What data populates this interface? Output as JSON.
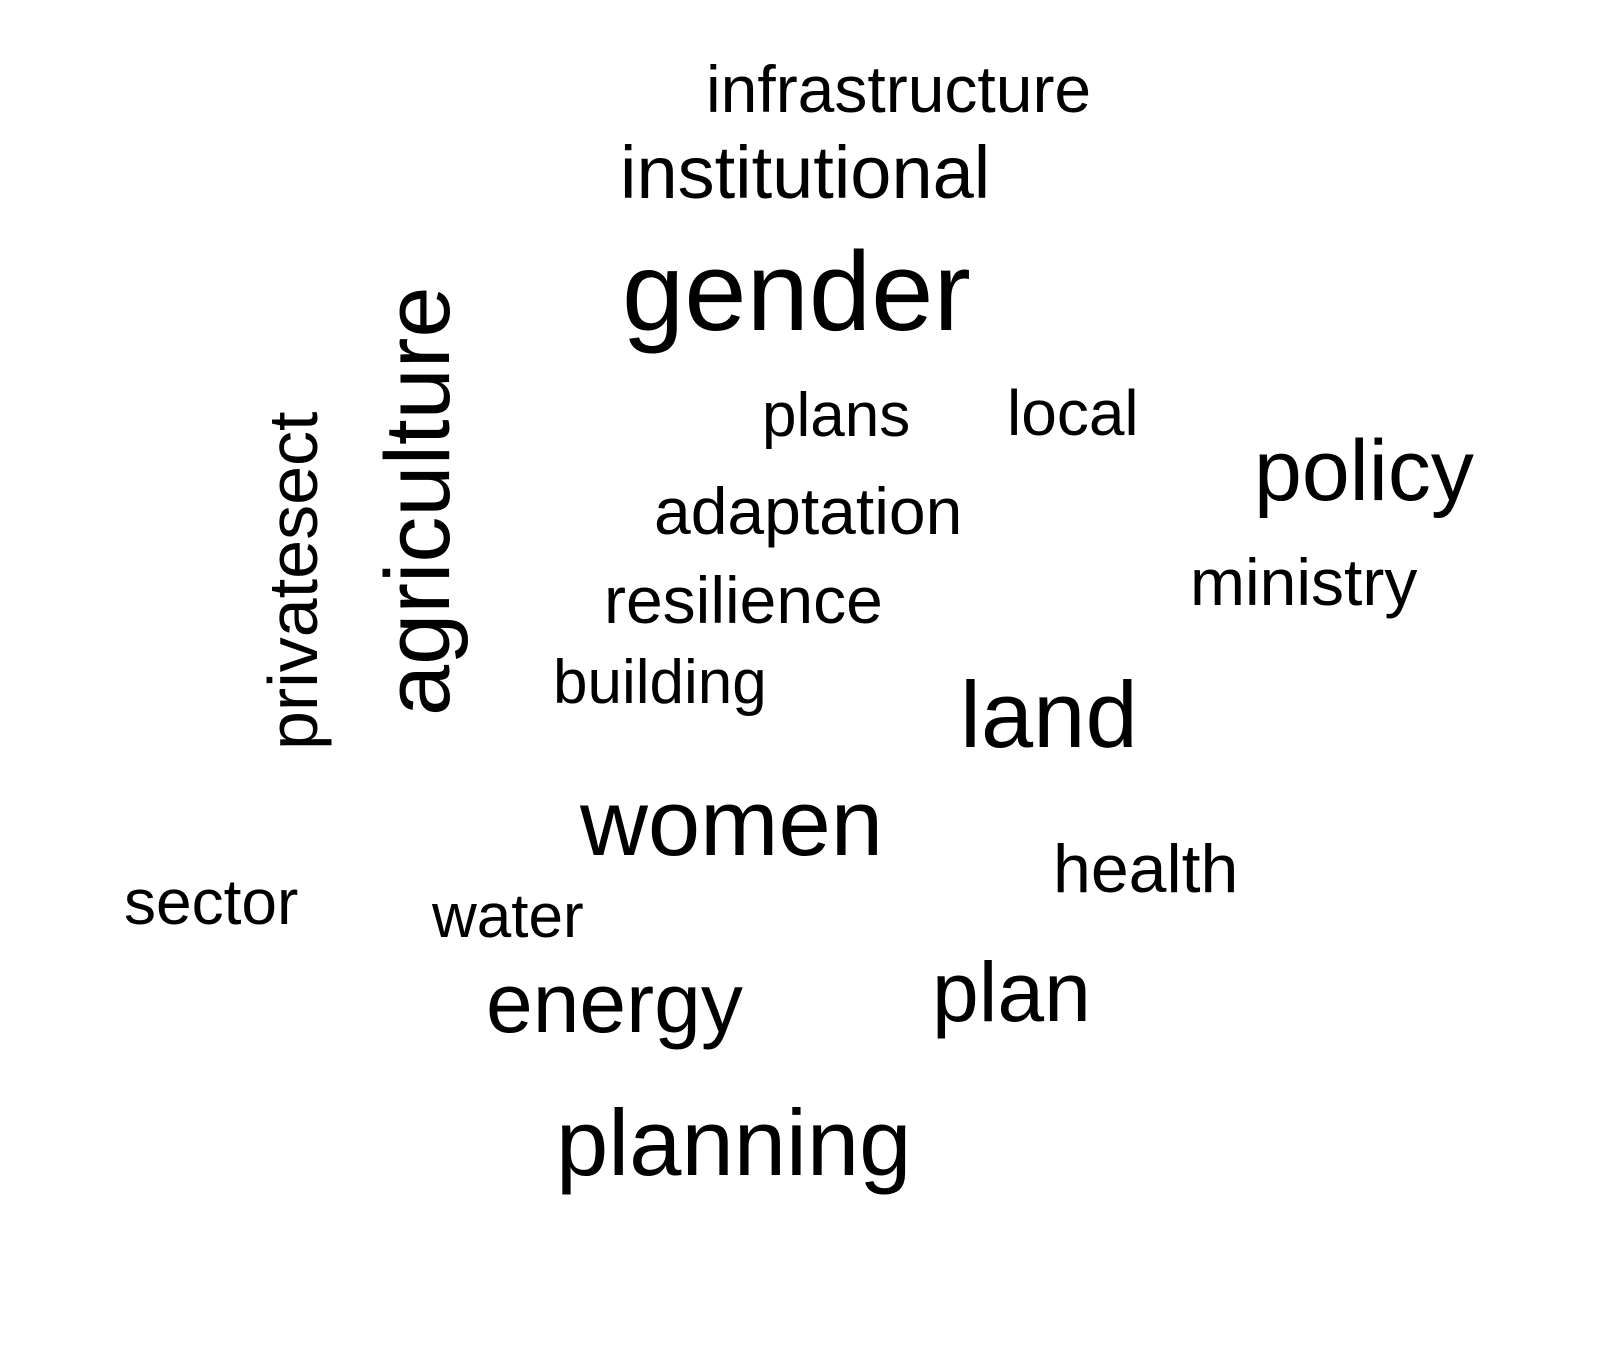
{
  "word_cloud": {
    "words": [
      {
        "text": "infrastructure"
      },
      {
        "text": "institutional"
      },
      {
        "text": "gender"
      },
      {
        "text": "plans"
      },
      {
        "text": "local"
      },
      {
        "text": "policy"
      },
      {
        "text": "adaptation"
      },
      {
        "text": "ministry"
      },
      {
        "text": "resilience"
      },
      {
        "text": "building"
      },
      {
        "text": "land"
      },
      {
        "text": "women"
      },
      {
        "text": "health"
      },
      {
        "text": "sector"
      },
      {
        "text": "water"
      },
      {
        "text": "energy"
      },
      {
        "text": "plan"
      },
      {
        "text": "planning"
      },
      {
        "text": "privatesect"
      },
      {
        "text": "agriculture"
      }
    ],
    "text_color": "#000000",
    "background_color": "#ffffff"
  }
}
